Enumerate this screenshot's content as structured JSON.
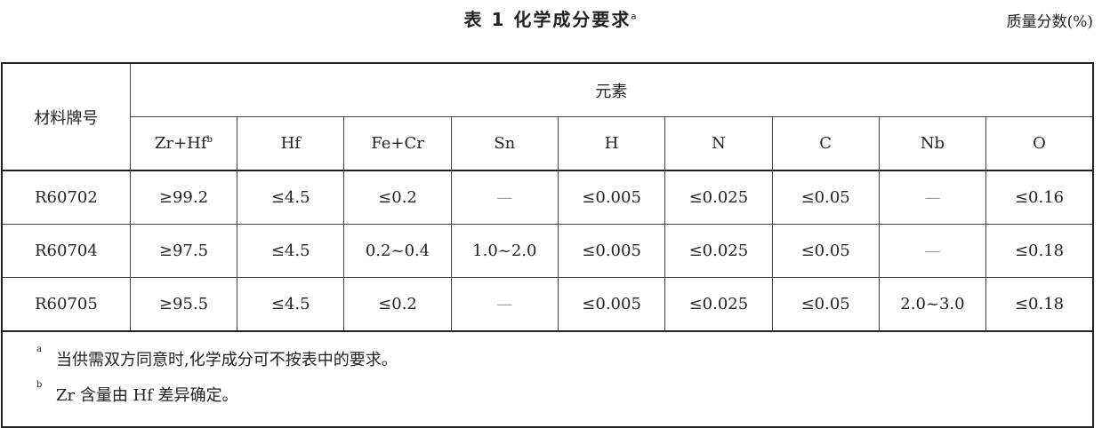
{
  "title": {
    "text": "表 1  化学成分要求",
    "sup": "a"
  },
  "unit": "质量分数(%)",
  "table": {
    "row_header": "材料牌号",
    "group_header": "元素",
    "columns": [
      {
        "label": "Zr+Hf",
        "sup": "b"
      },
      {
        "label": "Hf"
      },
      {
        "label": "Fe+Cr"
      },
      {
        "label": "Sn"
      },
      {
        "label": "H"
      },
      {
        "label": "N"
      },
      {
        "label": "C"
      },
      {
        "label": "Nb"
      },
      {
        "label": "O"
      }
    ],
    "rows": [
      {
        "grade": "R60702",
        "values": [
          "≥99.2",
          "≤4.5",
          "≤0.2",
          "—",
          "≤0.005",
          "≤0.025",
          "≤0.05",
          "—",
          "≤0.16"
        ]
      },
      {
        "grade": "R60704",
        "values": [
          "≥97.5",
          "≤4.5",
          "0.2~0.4",
          "1.0~2.0",
          "≤0.005",
          "≤0.025",
          "≤0.05",
          "—",
          "≤0.18"
        ]
      },
      {
        "grade": "R60705",
        "values": [
          "≥95.5",
          "≤4.5",
          "≤0.2",
          "—",
          "≤0.005",
          "≤0.025",
          "≤0.05",
          "2.0~3.0",
          "≤0.18"
        ]
      }
    ]
  },
  "notes": [
    {
      "mark": "a",
      "text": "当供需双方同意时,化学成分可不按表中的要求。"
    },
    {
      "mark": "b",
      "text": "Zr 含量由 Hf 差异确定。"
    }
  ]
}
